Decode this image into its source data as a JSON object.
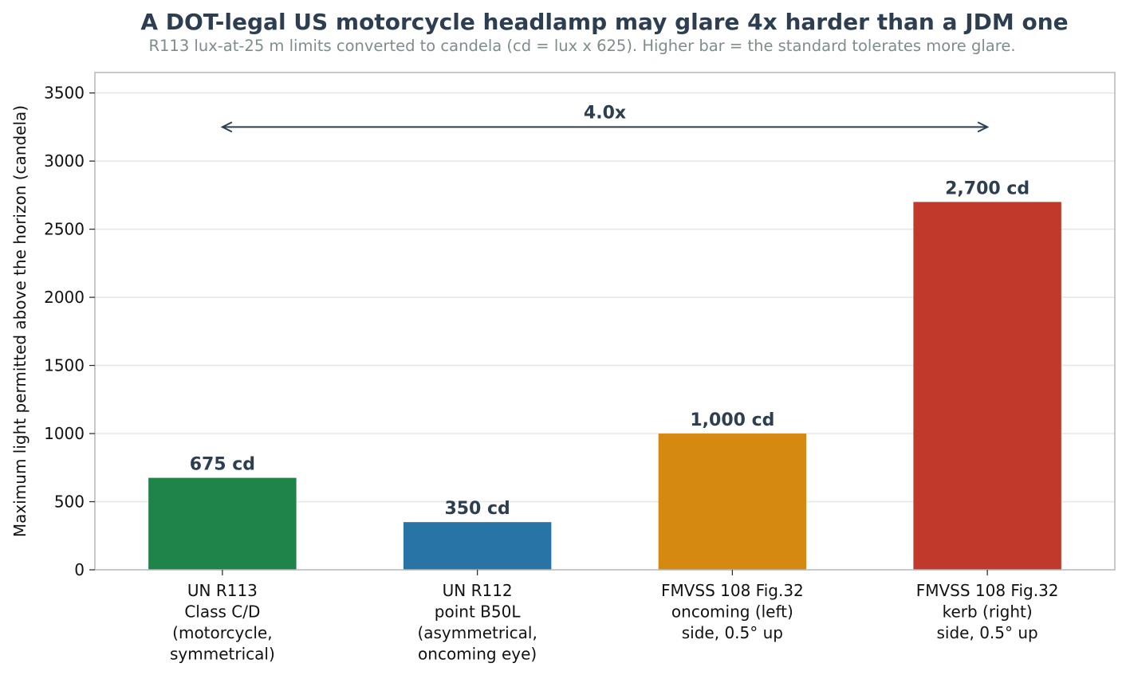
{
  "chart_data": {
    "type": "bar",
    "title": "A DOT-legal US motorcycle headlamp may glare 4x harder than a JDM one",
    "subtitle": "R113 lux-at-25 m limits converted to candela (cd = lux x 625). Higher bar = the standard tolerates more glare.",
    "xlabel": "",
    "ylabel": "Maximum light permitted above the horizon (candela)",
    "ylim": [
      0,
      3650
    ],
    "yticks": [
      0,
      500,
      1000,
      1500,
      2000,
      2500,
      3000,
      3500
    ],
    "grid": "horizontal",
    "categories": [
      [
        "UN R113",
        "Class C/D",
        "(motorcycle,",
        "symmetrical)"
      ],
      [
        "UN R112",
        "point B50L",
        "(asymmetrical,",
        "oncoming eye)"
      ],
      [
        "FMVSS 108 Fig.32",
        "oncoming (left)",
        "side, 0.5° up"
      ],
      [
        "FMVSS 108 Fig.32",
        "kerb (right)",
        "side, 0.5° up"
      ]
    ],
    "values": [
      675,
      350,
      1000,
      2700
    ],
    "value_labels": [
      "675 cd",
      "350 cd",
      "1,000 cd",
      "2,700 cd"
    ],
    "colors": [
      "#1e8449",
      "#2874a6",
      "#d68910",
      "#c0392b"
    ],
    "annotation": {
      "text": "4.0x",
      "y": 3250,
      "from_category": 0,
      "to_category": 3,
      "color": "#2c3e50"
    }
  }
}
